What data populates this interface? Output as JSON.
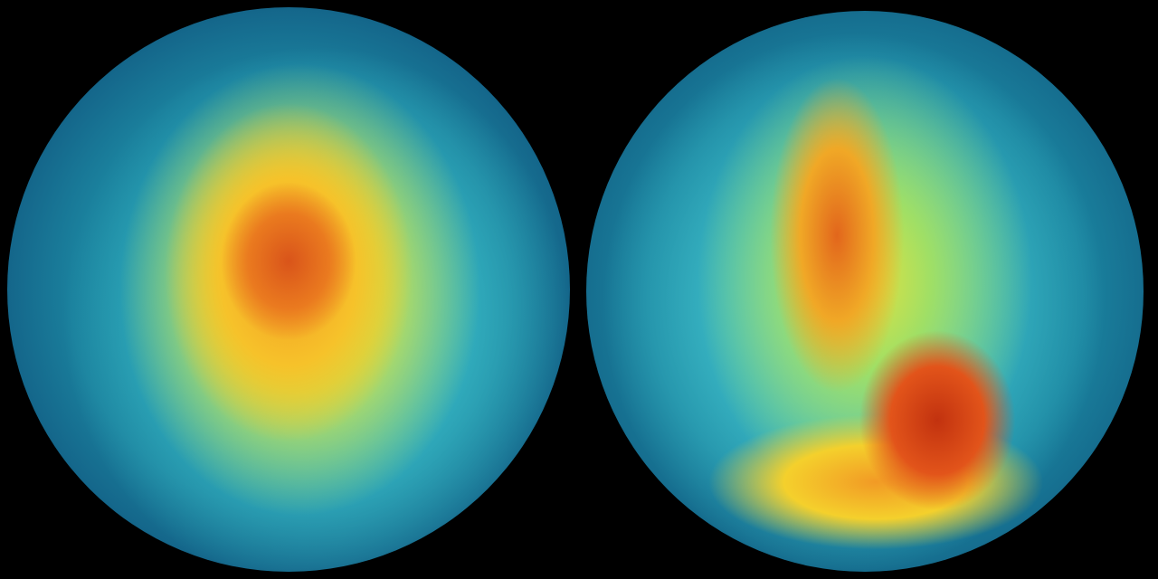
{
  "scene": {
    "globes": [
      {
        "view": "southern-hemisphere-polar-vortex",
        "colors": {
          "core": "#d9541a",
          "mid": "#f6c22a",
          "outer": "#37b7c4",
          "edge": "#062845"
        }
      },
      {
        "view": "polar-vortex-split",
        "colors": {
          "core": "#c2320f",
          "mid": "#f0a826",
          "outer": "#3bb8c5",
          "edge": "#082f4c"
        }
      }
    ],
    "background": "#000000"
  }
}
